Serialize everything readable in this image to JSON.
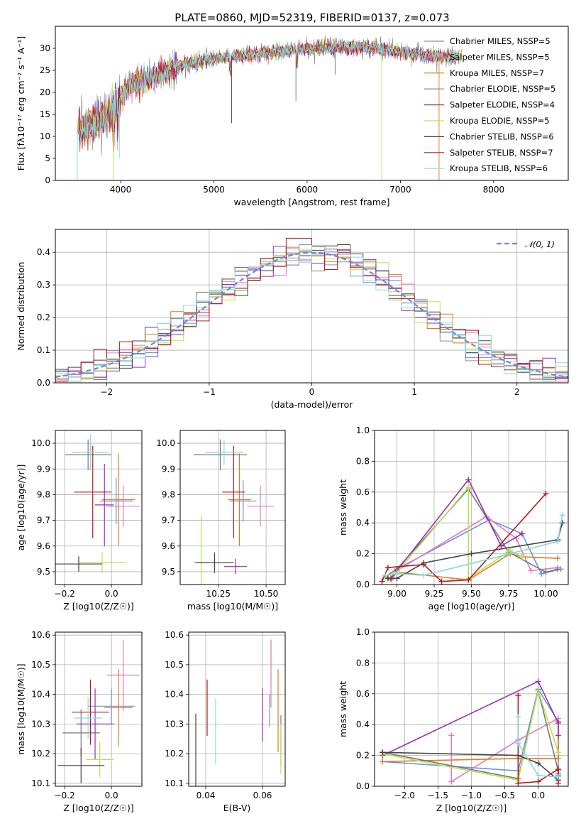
{
  "figure_title": "PLATE=0860, MJD=52319, FIBERID=0137, z=0.073",
  "colors": [
    "#6b93e0",
    "#e377c2",
    "#e07b1e",
    "#777777",
    "#9b2fb5",
    "#b5e34a",
    "#444444",
    "#b31b1b",
    "#86d8e4"
  ],
  "chart_data": [
    {
      "id": "spectrum",
      "type": "line",
      "title": "PLATE=0860, MJD=52319, FIBERID=0137, z=0.073",
      "xlabel": "wavelength [Angstrom, rest frame]",
      "ylabel": "Flux [fλ10⁻¹⁷ erg cm⁻² s⁻¹ A⁻¹]",
      "xlim": [
        3300,
        8800
      ],
      "ylim": [
        0,
        35
      ],
      "xticks": [
        "4000",
        "5000",
        "6000",
        "7000",
        "8000"
      ],
      "yticks": [
        "0",
        "5",
        "10",
        "15",
        "20",
        "25",
        "30"
      ],
      "legend_position": "right",
      "legend": [
        "Chabrier MILES, NSSP=5",
        "Salpeter MILES, NSSP=5",
        "Kroupa MILES, NSSP=7",
        "Chabrier ELODIE, NSSP=5",
        "Salpeter ELODIE, NSSP=4",
        "Kroupa ELODIE, NSSP=5",
        "Chabrier STELIB, NSSP=6",
        "Salpeter STELIB, NSSP=7",
        "Kroupa STELIB, NSSP=6"
      ],
      "continuum": {
        "x": [
          3550,
          3700,
          3800,
          3900,
          4000,
          4100,
          4300,
          4500,
          4700,
          4900,
          5200,
          5500,
          5800,
          6000,
          6300,
          6600,
          6900,
          7200,
          7400,
          7600
        ],
        "y": [
          11.5,
          12.5,
          14.0,
          15.5,
          19.0,
          21.5,
          23.0,
          25.0,
          26.5,
          27.3,
          28.2,
          28.8,
          29.6,
          30.0,
          30.2,
          30.3,
          29.5,
          28.5,
          28.2,
          28.0
        ]
      }
    },
    {
      "id": "residuals",
      "type": "histogram",
      "xlabel": "(data-model)/error",
      "ylabel": "Normed distribution",
      "xlim": [
        -2.5,
        2.5
      ],
      "ylim": [
        0,
        0.47
      ],
      "xticks": [
        "−2",
        "−1",
        "0",
        "1",
        "2"
      ],
      "yticks": [
        "0.0",
        "0.1",
        "0.2",
        "0.3",
        "0.4"
      ],
      "legend": [
        "𝒩(0, 1)"
      ],
      "legend_position": "top-right",
      "bins": 40
    },
    {
      "id": "age-vs-Z",
      "type": "errorbar",
      "xlabel": "Z [log10(Z/Z☉)]",
      "ylabel": "age  [log10(age/yr)]",
      "xlim": [
        -0.24,
        0.13
      ],
      "ylim": [
        9.45,
        10.05
      ],
      "xticks": [
        "−0.2",
        "0.0"
      ],
      "yticks": [
        "9.5",
        "9.6",
        "9.7",
        "9.8",
        "9.9",
        "10.0"
      ],
      "points": [
        {
          "x": 0.02,
          "y": 9.775,
          "xerr": 0.07,
          "yerr": 0.09
        },
        {
          "x": 0.05,
          "y": 9.755,
          "xerr": 0.07,
          "yerr": 0.08
        },
        {
          "x": 0.03,
          "y": 9.78,
          "xerr": 0.07,
          "yerr": 0.18
        },
        {
          "x": -0.1,
          "y": 9.955,
          "xerr": 0.1,
          "yerr": 0.06
        },
        {
          "x": -0.03,
          "y": 9.76,
          "xerr": 0.04,
          "yerr": 0.16
        },
        {
          "x": -0.04,
          "y": 9.535,
          "xerr": 0.1,
          "yerr": 0.04
        },
        {
          "x": -0.14,
          "y": 9.53,
          "xerr": 0.1,
          "yerr": 0.03
        },
        {
          "x": -0.08,
          "y": 9.81,
          "xerr": 0.08,
          "yerr": 0.18
        },
        {
          "x": -0.09,
          "y": 9.965,
          "xerr": 0.08,
          "yerr": 0.07
        }
      ]
    },
    {
      "id": "age-vs-mass",
      "type": "errorbar",
      "xlabel": "mass [log10(M/M☉)]",
      "ylabel": "",
      "xlim": [
        10.05,
        10.6
      ],
      "ylim": [
        9.45,
        10.05
      ],
      "xticks": [
        "10.25",
        "10.50"
      ],
      "yticks": [
        "9.5",
        "9.6",
        "9.7",
        "9.8",
        "9.9",
        "10.0"
      ],
      "points": [
        {
          "x": 10.38,
          "y": 9.775,
          "xerr": 0.07,
          "yerr": 0.08
        },
        {
          "x": 10.47,
          "y": 9.755,
          "xerr": 0.07,
          "yerr": 0.08
        },
        {
          "x": 10.36,
          "y": 9.78,
          "xerr": 0.06,
          "yerr": 0.18
        },
        {
          "x": 10.26,
          "y": 9.955,
          "xerr": 0.14,
          "yerr": 0.06
        },
        {
          "x": 10.34,
          "y": 9.52,
          "xerr": 0.06,
          "yerr": 0.03
        },
        {
          "x": 10.16,
          "y": 9.535,
          "xerr": 0.04,
          "yerr": 0.18
        },
        {
          "x": 10.23,
          "y": 9.535,
          "xerr": 0.1,
          "yerr": 0.04
        },
        {
          "x": 10.33,
          "y": 9.81,
          "xerr": 0.06,
          "yerr": 0.18
        },
        {
          "x": 10.28,
          "y": 9.965,
          "xerr": 0.1,
          "yerr": 0.05
        }
      ]
    },
    {
      "id": "massweight-vs-age",
      "type": "line",
      "xlabel": "age  [log10(age/yr)]",
      "ylabel": "mass weight",
      "xlim": [
        8.85,
        10.15
      ],
      "ylim": [
        0,
        1.0
      ],
      "xticks": [
        "9.00",
        "9.25",
        "9.50",
        "9.75",
        "10.00"
      ],
      "yticks": [
        "0.0",
        "0.2",
        "0.4",
        "0.6",
        "0.8",
        "1.0"
      ],
      "series": [
        {
          "x": [
            8.92,
            8.96,
            9.0,
            9.62,
            9.84,
            9.97,
            10.1
          ],
          "y": [
            0.05,
            0.04,
            0.1,
            0.42,
            0.33,
            0.07,
            0.1
          ]
        },
        {
          "x": [
            8.92,
            8.96,
            9.0,
            9.6,
            9.8,
            9.9,
            10.08
          ],
          "y": [
            0.05,
            0.04,
            0.09,
            0.44,
            0.3,
            0.09,
            0.11
          ]
        },
        {
          "x": [
            8.92,
            8.96,
            9.0,
            9.48,
            9.76,
            9.84,
            10.08
          ],
          "y": [
            0.06,
            0.03,
            0.08,
            0.03,
            0.2,
            0.18,
            0.17
          ]
        },
        {
          "x": [
            8.92,
            9.0,
            9.48,
            9.75,
            10.0,
            10.08
          ],
          "y": [
            0.05,
            0.1,
            0.62,
            0.21,
            0.08,
            0.1
          ]
        },
        {
          "x": [
            8.92,
            8.96,
            9.0,
            9.48,
            9.7,
            9.84
          ],
          "y": [
            0.05,
            0.04,
            0.09,
            0.68,
            0.25,
            0.33
          ]
        },
        {
          "x": [
            8.92,
            9.0,
            9.48,
            9.48,
            9.76,
            9.84
          ],
          "y": [
            0.05,
            0.08,
            0.63,
            0.04,
            0.22,
            0.18
          ]
        },
        {
          "x": [
            8.94,
            9.0,
            9.18,
            9.5,
            10.08,
            10.11
          ],
          "y": [
            0.04,
            0.04,
            0.14,
            0.2,
            0.29,
            0.4
          ]
        },
        {
          "x": [
            8.9,
            8.94,
            9.18,
            9.3,
            9.48,
            10.0
          ],
          "y": [
            0.02,
            0.11,
            0.13,
            0.02,
            0.03,
            0.59
          ]
        },
        {
          "x": [
            8.92,
            9.0,
            9.18,
            9.72,
            10.08,
            10.11
          ],
          "y": [
            0.06,
            0.07,
            0.06,
            0.19,
            0.28,
            0.45
          ]
        }
      ]
    },
    {
      "id": "mass-vs-Z",
      "type": "errorbar",
      "xlabel": "Z [log10(Z/Z☉)]",
      "ylabel": "mass [log10(M/M☉)]",
      "xlim": [
        -0.24,
        0.13
      ],
      "ylim": [
        10.09,
        10.61
      ],
      "xticks": [
        "−0.2",
        "0.0"
      ],
      "yticks": [
        "10.1",
        "10.2",
        "10.3",
        "10.4",
        "10.5",
        "10.6"
      ],
      "points": [
        {
          "x": 0.0,
          "y": 10.36,
          "xerr": 0.1,
          "yerr": 0.06
        },
        {
          "x": 0.05,
          "y": 10.465,
          "xerr": 0.07,
          "yerr": 0.12
        },
        {
          "x": 0.03,
          "y": 10.355,
          "xerr": 0.06,
          "yerr": 0.13
        },
        {
          "x": -0.13,
          "y": 10.27,
          "xerr": 0.08,
          "yerr": 0.08
        },
        {
          "x": -0.07,
          "y": 10.3,
          "xerr": 0.08,
          "yerr": 0.12
        },
        {
          "x": -0.05,
          "y": 10.18,
          "xerr": 0.06,
          "yerr": 0.06
        },
        {
          "x": -0.13,
          "y": 10.16,
          "xerr": 0.1,
          "yerr": 0.06
        },
        {
          "x": -0.09,
          "y": 10.34,
          "xerr": 0.08,
          "yerr": 0.11
        },
        {
          "x": -0.1,
          "y": 10.32,
          "xerr": 0.06,
          "yerr": 0.07
        }
      ]
    },
    {
      "id": "mass-vs-ebv",
      "type": "errorbar",
      "xlabel": "E(B-V)",
      "ylabel": "",
      "xlim": [
        0.034,
        0.068
      ],
      "ylim": [
        10.09,
        10.61
      ],
      "xticks": [
        "0.04",
        "0.06"
      ],
      "yticks": [
        "10.1",
        "10.2",
        "10.3",
        "10.4",
        "10.5",
        "10.6"
      ],
      "points": [
        {
          "x": 0.0625,
          "y": 10.345,
          "xerr": 0,
          "yerr": 0.055
        },
        {
          "x": 0.063,
          "y": 10.47,
          "xerr": 0,
          "yerr": 0.115
        },
        {
          "x": 0.0655,
          "y": 10.345,
          "xerr": 0,
          "yerr": 0.14
        },
        {
          "x": 0.0665,
          "y": 10.245,
          "xerr": 0,
          "yerr": 0.085
        },
        {
          "x": 0.06,
          "y": 10.33,
          "xerr": 0,
          "yerr": 0.09
        },
        {
          "x": 0.0665,
          "y": 10.215,
          "xerr": 0,
          "yerr": 0.085
        },
        {
          "x": 0.0365,
          "y": 10.21,
          "xerr": 0,
          "yerr": 0.125
        },
        {
          "x": 0.0405,
          "y": 10.355,
          "xerr": 0,
          "yerr": 0.095
        },
        {
          "x": 0.0435,
          "y": 10.275,
          "xerr": 0,
          "yerr": 0.11
        }
      ]
    },
    {
      "id": "massweight-vs-Z",
      "type": "line",
      "xlabel": "Z [log10(Z/Z☉)]",
      "ylabel": "mass weight",
      "xlim": [
        -2.45,
        0.45
      ],
      "ylim": [
        0,
        1.0
      ],
      "xticks": [
        "−2.0",
        "−1.5",
        "−1.0",
        "−0.5",
        "0.0"
      ],
      "yticks": [
        "0.0",
        "0.2",
        "0.4",
        "0.6",
        "0.8",
        "1.0"
      ],
      "series": [
        {
          "x": [
            -2.33,
            -0.3,
            0.0,
            0.3,
            0.3
          ],
          "y": [
            0.16,
            0.1,
            0.63,
            0.42,
            0.07
          ]
        },
        {
          "x": [
            -1.3,
            -1.3,
            -0.3,
            0.3,
            0.3
          ],
          "y": [
            0.33,
            0.03,
            0.3,
            0.44,
            0.04
          ]
        },
        {
          "x": [
            -2.33,
            -0.3,
            0.3,
            0.3
          ],
          "y": [
            0.16,
            0.18,
            0.18,
            0.42
          ]
        },
        {
          "x": [
            -2.33,
            -0.3,
            0.0,
            0.3,
            0.3
          ],
          "y": [
            0.22,
            0.05,
            0.62,
            0.1,
            0.08
          ]
        },
        {
          "x": [
            -2.33,
            0.0,
            0.3,
            0.3
          ],
          "y": [
            0.2,
            0.68,
            0.41,
            0.33
          ]
        },
        {
          "x": [
            -2.33,
            -0.3,
            0.0,
            0.3
          ],
          "y": [
            0.21,
            0.04,
            0.62,
            0.22
          ]
        },
        {
          "x": [
            -2.33,
            -0.3,
            0.0,
            0.3
          ],
          "y": [
            0.22,
            0.2,
            0.15,
            0.04
          ]
        },
        {
          "x": [
            -0.3,
            -0.3,
            0.0,
            0.3,
            0.3
          ],
          "y": [
            0.59,
            0.02,
            0.03,
            0.11,
            0.02
          ]
        },
        {
          "x": [
            -0.3,
            -0.3,
            0.0,
            0.3
          ],
          "y": [
            0.45,
            0.28,
            0.07,
            0.06
          ]
        }
      ]
    }
  ]
}
